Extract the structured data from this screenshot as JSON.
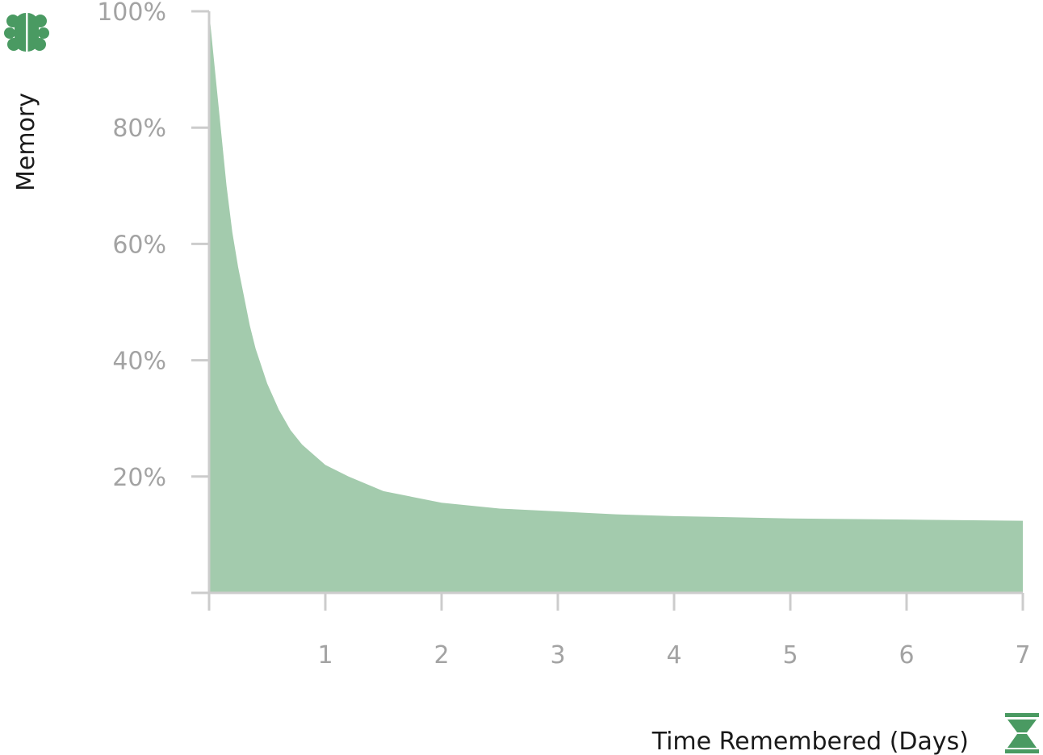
{
  "colors": {
    "fill": "#a3cbad",
    "icon": "#4a9a62",
    "axis": "#cccccc",
    "tick_text": "#a3a3a3",
    "title_text": "#1a1a1a"
  },
  "icons": {
    "y_axis": "brain-icon",
    "x_axis": "hourglass-icon"
  },
  "chart_data": {
    "type": "area",
    "title": "",
    "xlabel": "Time Remembered (Days)",
    "ylabel": "Memory",
    "xlim": [
      0,
      7
    ],
    "ylim": [
      0,
      100
    ],
    "grid": false,
    "x_ticks": [
      {
        "value": 1,
        "label": "1"
      },
      {
        "value": 2,
        "label": "2"
      },
      {
        "value": 3,
        "label": "3"
      },
      {
        "value": 4,
        "label": "4"
      },
      {
        "value": 5,
        "label": "5"
      },
      {
        "value": 6,
        "label": "6"
      },
      {
        "value": 7,
        "label": "7"
      }
    ],
    "y_ticks": [
      {
        "value": 20,
        "label": "20%"
      },
      {
        "value": 40,
        "label": "40%"
      },
      {
        "value": 60,
        "label": "60%"
      },
      {
        "value": 80,
        "label": "80%"
      },
      {
        "value": 100,
        "label": "100%"
      }
    ],
    "series": [
      {
        "x": [
          0,
          0.05,
          0.1,
          0.15,
          0.2,
          0.25,
          0.3,
          0.35,
          0.4,
          0.5,
          0.6,
          0.7,
          0.8,
          1,
          1.2,
          1.5,
          2,
          2.5,
          3,
          3.5,
          4,
          5,
          6,
          7
        ],
        "y": [
          100,
          90,
          80,
          70,
          62,
          56,
          51,
          46,
          42,
          36,
          31.5,
          28,
          25.5,
          22,
          20,
          17.5,
          15.5,
          14.5,
          14,
          13.5,
          13.2,
          12.8,
          12.6,
          12.4
        ]
      }
    ]
  }
}
